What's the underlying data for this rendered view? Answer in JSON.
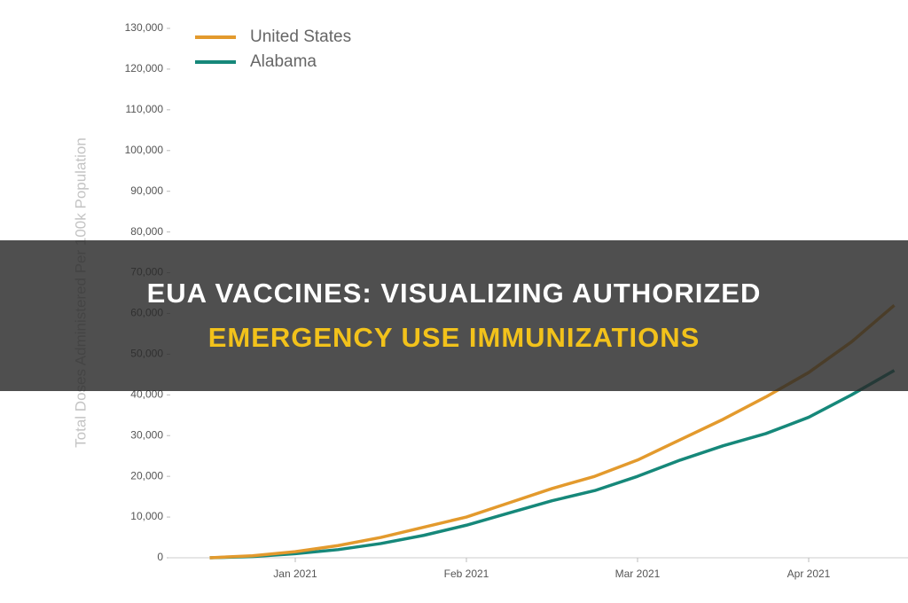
{
  "chart_data": {
    "type": "line",
    "y_label": "Total Doses Administered Per 100k Population",
    "categories": [
      null,
      null,
      "Jan 2021",
      null,
      null,
      null,
      "Feb 2021",
      null,
      null,
      null,
      "Mar 2021",
      null,
      null,
      null,
      "Apr 2021",
      null,
      null
    ],
    "series": [
      {
        "name": "United States",
        "color": "#e39a2d",
        "values": [
          0,
          500,
          1500,
          3000,
          5000,
          7500,
          10000,
          13500,
          17000,
          20000,
          24000,
          29000,
          34000,
          39500,
          45500,
          53000,
          62000
        ]
      },
      {
        "name": "Alabama",
        "color": "#16887a",
        "values": [
          0,
          300,
          1000,
          2000,
          3500,
          5500,
          8000,
          11000,
          14000,
          16500,
          20000,
          24000,
          27500,
          30500,
          34500,
          40000,
          46000
        ]
      }
    ],
    "ylim": [
      0,
      130000
    ],
    "yticks": [
      0,
      {
        "value": 10000,
        "label": "10,000"
      },
      {
        "value": 20000,
        "label": "20,000"
      },
      {
        "value": 30000,
        "label": "30,000"
      },
      {
        "value": 40000,
        "label": "40,000"
      },
      {
        "value": 50000,
        "label": "50,000"
      },
      {
        "value": 60000,
        "label": "60,000"
      },
      {
        "value": 70000,
        "label": "70,000"
      },
      {
        "value": 80000,
        "label": "80,000"
      },
      {
        "value": 90000,
        "label": "90,000"
      },
      {
        "value": 100000,
        "label": "100,000"
      },
      {
        "value": 110000,
        "label": "110,000"
      },
      {
        "value": 120000,
        "label": "120,000"
      },
      {
        "value": 130000,
        "label": "130,000"
      }
    ],
    "legend": "top-left"
  },
  "banner": {
    "line1": "EUA VACCINES: VISUALIZING AUTHORIZED",
    "line2": "EMERGENCY USE IMMUNIZATIONS"
  }
}
